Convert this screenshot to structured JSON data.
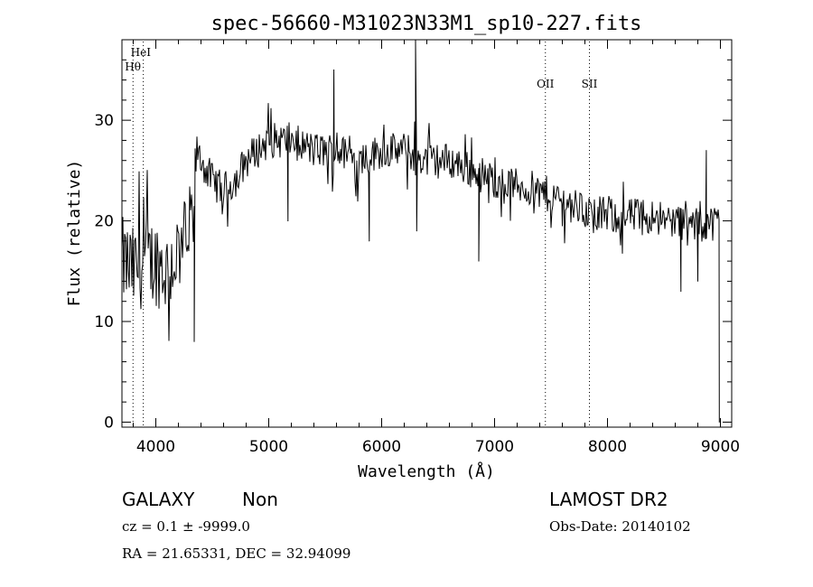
{
  "chart_data": {
    "type": "line",
    "title": "spec-56660-M31023N33M1_sp10-227.fits",
    "xlabel": "Wavelength (Å)",
    "ylabel": "Flux (relative)",
    "xlim": [
      3700,
      9100
    ],
    "ylim": [
      -0.5,
      38
    ],
    "xticks": [
      4000,
      5000,
      6000,
      7000,
      8000,
      9000
    ],
    "yticks": [
      0,
      10,
      20,
      30
    ],
    "grid": false,
    "series": [
      {
        "name": "spectrum",
        "anchors_x": [
          3700,
          3800,
          3900,
          4000,
          4100,
          4200,
          4300,
          4330,
          4360,
          4400,
          4500,
          4600,
          4700,
          4800,
          5000,
          5200,
          5400,
          5600,
          5800,
          6000,
          6200,
          6400,
          6600,
          6800,
          7000,
          7200,
          7400,
          7600,
          7800,
          8000,
          8200,
          8400,
          8600,
          8800,
          9000
        ],
        "anchors_y": [
          16,
          15,
          16,
          16,
          15,
          17,
          19,
          21,
          27,
          26,
          24,
          23,
          24,
          26,
          28,
          28,
          27,
          27,
          26,
          27,
          27,
          26,
          26,
          25,
          24,
          23.5,
          23,
          22,
          21,
          20.5,
          20.5,
          20.5,
          20,
          19.5,
          20
        ],
        "noise_amplitude": [
          [
            3700,
            4.5
          ],
          [
            4330,
            4.5
          ],
          [
            4360,
            1.8
          ],
          [
            9100,
            1.8
          ]
        ],
        "spikes": [
          {
            "x": 5577,
            "y": 35
          },
          {
            "x": 6300,
            "y": 38
          },
          {
            "x": 6310,
            "y": 19
          },
          {
            "x": 4340,
            "y": 8
          },
          {
            "x": 5170,
            "y": 20
          },
          {
            "x": 5890,
            "y": 18
          },
          {
            "x": 6860,
            "y": 16
          },
          {
            "x": 7600,
            "y": 19.5
          },
          {
            "x": 8650,
            "y": 13
          },
          {
            "x": 8800,
            "y": 14
          },
          {
            "x": 8875,
            "y": 27
          },
          {
            "x": 8990,
            "y": 0
          }
        ]
      }
    ],
    "lines": [
      {
        "label": "HeI",
        "x": 3889
      },
      {
        "label": "Hθ",
        "x": 3798
      },
      {
        "label": "OII",
        "x": 7450
      },
      {
        "label": "SII",
        "x": 7840
      }
    ]
  },
  "info": {
    "class": "GALAXY",
    "subclass": "Non",
    "survey": "LAMOST DR2",
    "cz": "cz = 0.1 ± -9999.0",
    "obs_date": "Obs-Date: 20140102",
    "coords": "RA =  21.65331, DEC =  32.94099"
  }
}
